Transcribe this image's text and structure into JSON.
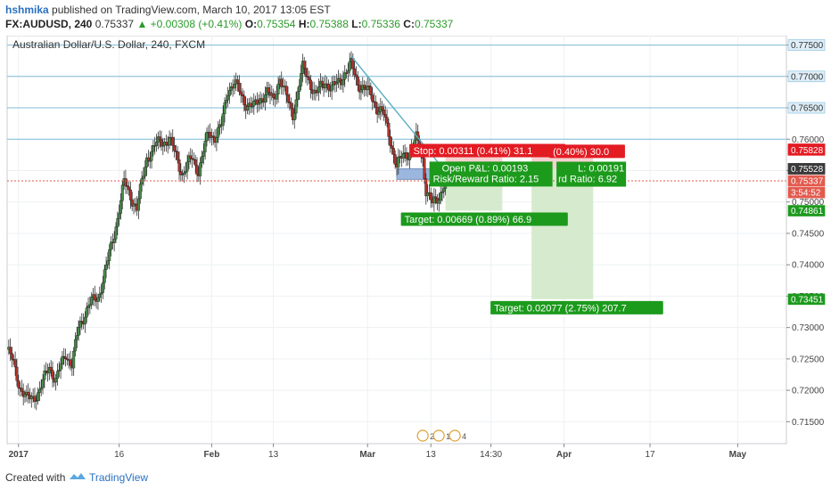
{
  "header": {
    "author": "hshmika",
    "published_text": "published on TradingView.com, March 10, 2017 13:05 EST",
    "symbol": "FX:AUDUSD, 240",
    "last": "0.75337",
    "change": "▲ +0.00308 (+0.41%)",
    "o_label": "O:",
    "o_value": "0.75354",
    "h_label": "H:",
    "h_value": "0.75388",
    "l_label": "L:",
    "l_value": "0.75336",
    "c_label": "C:",
    "c_value": "0.75337"
  },
  "footer": {
    "created_with": "Created with",
    "brand": "TradingView"
  },
  "chart_data": {
    "type": "candlestick",
    "title": "Australian Dollar/U.S. Dollar, 240, FXCM",
    "ylim": [
      0.7115,
      0.7765
    ],
    "y_ticks": [
      "0.71500",
      "0.72000",
      "0.72500",
      "0.73000",
      "0.73500",
      "0.74000",
      "0.74500",
      "0.75000",
      "0.75500",
      "0.76000",
      "0.76500",
      "0.77000",
      "0.77500"
    ],
    "x_ticks": [
      {
        "label": "2017",
        "bold": true,
        "bar": 7
      },
      {
        "label": "16",
        "bold": false,
        "bar": 69
      },
      {
        "label": "Feb",
        "bold": true,
        "bar": 126
      },
      {
        "label": "13",
        "bold": false,
        "bar": 164
      },
      {
        "label": "Mar",
        "bold": true,
        "bar": 222
      },
      {
        "label": "13",
        "bold": false,
        "bar": 261
      },
      {
        "label": "14:30",
        "bold": false,
        "bar": 298
      },
      {
        "label": "Apr",
        "bold": true,
        "bar": 343
      },
      {
        "label": "17",
        "bold": false,
        "bar": 396
      },
      {
        "label": "May",
        "bold": true,
        "bar": 450
      }
    ],
    "close_path": [
      [
        0,
        0.7265
      ],
      [
        4,
        0.7242
      ],
      [
        8,
        0.7205
      ],
      [
        12,
        0.7185
      ],
      [
        16,
        0.719
      ],
      [
        20,
        0.7198
      ],
      [
        26,
        0.724
      ],
      [
        30,
        0.7215
      ],
      [
        36,
        0.726
      ],
      [
        40,
        0.724
      ],
      [
        44,
        0.73
      ],
      [
        50,
        0.7335
      ],
      [
        56,
        0.7348
      ],
      [
        62,
        0.7405
      ],
      [
        66,
        0.745
      ],
      [
        72,
        0.753
      ],
      [
        80,
        0.749
      ],
      [
        86,
        0.757
      ],
      [
        92,
        0.7592
      ],
      [
        100,
        0.76
      ],
      [
        108,
        0.7545
      ],
      [
        114,
        0.757
      ],
      [
        118,
        0.755
      ],
      [
        124,
        0.761
      ],
      [
        128,
        0.7605
      ],
      [
        132,
        0.762
      ],
      [
        136,
        0.768
      ],
      [
        140,
        0.769
      ],
      [
        146,
        0.766
      ],
      [
        152,
        0.765
      ],
      [
        156,
        0.7665
      ],
      [
        160,
        0.7675
      ],
      [
        164,
        0.766
      ],
      [
        168,
        0.77
      ],
      [
        172,
        0.7665
      ],
      [
        176,
        0.764
      ],
      [
        182,
        0.7712
      ],
      [
        186,
        0.7695
      ],
      [
        190,
        0.767
      ],
      [
        196,
        0.7693
      ],
      [
        200,
        0.768
      ],
      [
        204,
        0.769
      ],
      [
        208,
        0.7706
      ],
      [
        212,
        0.7718
      ],
      [
        216,
        0.769
      ],
      [
        220,
        0.768
      ],
      [
        224,
        0.7672
      ],
      [
        228,
        0.765
      ],
      [
        232,
        0.7638
      ],
      [
        236,
        0.76
      ],
      [
        240,
        0.7555
      ],
      [
        244,
        0.7575
      ],
      [
        248,
        0.758
      ],
      [
        252,
        0.76
      ],
      [
        256,
        0.757
      ],
      [
        258,
        0.752
      ],
      [
        262,
        0.7495
      ],
      [
        266,
        0.751
      ],
      [
        270,
        0.7534
      ]
    ],
    "bars_total": 270,
    "trendline": [
      [
        0.7732,
        0.7555
      ]
    ],
    "horizontal_levels": [
      "0.77500",
      "0.77000",
      "0.76500",
      "0.76000"
    ],
    "price_labels": [
      {
        "text": "0.77500",
        "bg": "#dfeef8",
        "color": "#333333",
        "value": 0.775
      },
      {
        "text": "0.77000",
        "bg": "#dfeef8",
        "color": "#333333",
        "value": 0.77
      },
      {
        "text": "0.76500",
        "bg": "#dfeef8",
        "color": "#333333",
        "value": 0.765
      },
      {
        "text": "0.75841",
        "bg": "#e31b23",
        "color": "#ffffff",
        "value": 0.75841
      },
      {
        "text": "0.75828",
        "bg": "#e31b23",
        "color": "#ffffff",
        "value": 0.75828
      },
      {
        "text": "0.75530",
        "bg": "#3a3a3a",
        "color": "#ffffff",
        "value": 0.7553
      },
      {
        "text": "0.75528",
        "bg": "#3a3a3a",
        "color": "#ffffff",
        "value": 0.75528
      },
      {
        "text": "0.75337",
        "bg": "#e35a4e",
        "color": "#ffffff",
        "value": 0.75337
      },
      {
        "text": "3:54:52",
        "bg": "#e35a4e",
        "color": "#ffffff",
        "value": 0.7515
      },
      {
        "text": "0.74861",
        "bg": "#1c9a1c",
        "color": "#ffffff",
        "value": 0.74861
      },
      {
        "text": "0.73451",
        "bg": "#1c9a1c",
        "color": "#ffffff",
        "value": 0.73451
      }
    ],
    "positions": [
      {
        "entry": 0.7553,
        "stop": 0.75841,
        "target": 0.74861,
        "start_bar": 270,
        "end_bar": 305,
        "stop_label": "Stop: 0.00311 (0.41%) 31.1",
        "target_label": "Target: 0.00669 (0.89%) 66.9",
        "pl_label": "Open P&L: 0.00193",
        "rr_label": "Risk/Reward Ratio: 2.15"
      },
      {
        "entry": 0.75528,
        "stop": 0.75828,
        "target": 0.73451,
        "start_bar": 323,
        "end_bar": 361,
        "stop_label": "(0.40%) 30.0",
        "target_label": "Target: 0.02077 (2.75%) 207.7",
        "pl_label": "L: 0.00191",
        "rr_label": "rd Ratio: 6.92"
      }
    ],
    "current_price": 0.75337,
    "entry_box": {
      "top": 0.7553,
      "bottom": 0.7536,
      "start_bar": 240,
      "end_bar": 272
    },
    "event_markers": [
      "2",
      "12",
      "4"
    ],
    "colors": {
      "up": "#4a8c4a",
      "down": "#b2342c",
      "grid": "#eef1f4",
      "level": "#7fbcd8",
      "trend": "#5ab0c0"
    }
  }
}
